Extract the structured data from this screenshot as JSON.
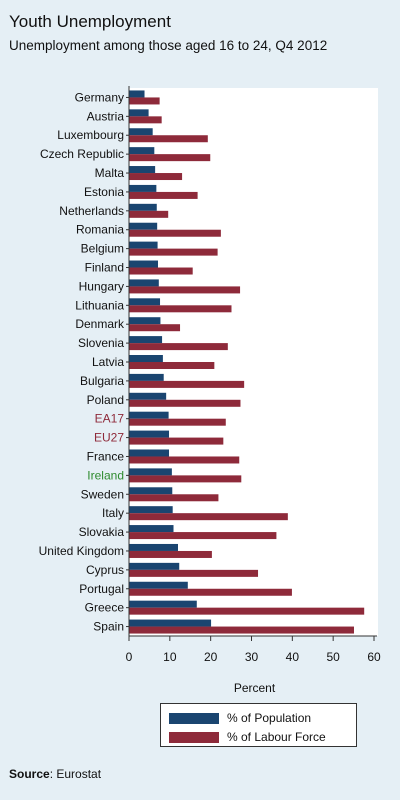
{
  "header": {
    "title": "Youth Unemployment",
    "subtitle": "Unemployment among those aged 16 to 24, Q4 2012"
  },
  "source": {
    "label": "Source",
    "text": ": Eurostat"
  },
  "colors": {
    "background": "#e5eff5",
    "population": "#1a4570",
    "labour_force": "#8e2a3a",
    "label_default": "#111111",
    "label_aggregate": "#8e2a3a",
    "label_highlight": "#2e8b2e"
  },
  "chart_data": {
    "type": "bar",
    "orientation": "horizontal",
    "xlabel": "Percent",
    "xlim": [
      0,
      60
    ],
    "xticks": [
      0,
      10,
      20,
      30,
      40,
      50,
      60
    ],
    "grid": false,
    "legend_position": "bottom",
    "categories": [
      "Germany",
      "Austria",
      "Luxembourg",
      "Czech Republic",
      "Malta",
      "Estonia",
      "Netherlands",
      "Romania",
      "Belgium",
      "Finland",
      "Hungary",
      "Lithuania",
      "Denmark",
      "Slovenia",
      "Latvia",
      "Bulgaria",
      "Poland",
      "EA17",
      "EU27",
      "France",
      "Ireland",
      "Sweden",
      "Italy",
      "Slovakia",
      "United Kingdom",
      "Cyprus",
      "Portugal",
      "Greece",
      "Spain"
    ],
    "label_style": {
      "EA17": "aggregate",
      "EU27": "aggregate",
      "Ireland": "highlight"
    },
    "series": [
      {
        "name": "% of Population",
        "values": [
          3.8,
          4.8,
          5.8,
          6.2,
          6.4,
          6.7,
          6.8,
          6.9,
          7.0,
          7.1,
          7.3,
          7.6,
          7.7,
          8.1,
          8.3,
          8.5,
          9.1,
          9.7,
          9.8,
          9.8,
          10.5,
          10.6,
          10.7,
          10.9,
          12.0,
          12.3,
          14.4,
          16.6,
          20.1
        ]
      },
      {
        "name": "% of Labour Force",
        "values": [
          7.5,
          8.0,
          19.3,
          19.9,
          13.0,
          16.8,
          9.6,
          22.5,
          21.7,
          15.6,
          27.2,
          25.1,
          12.5,
          24.2,
          20.9,
          28.2,
          27.3,
          23.7,
          23.1,
          27.0,
          27.5,
          21.9,
          38.9,
          36.1,
          20.3,
          31.6,
          39.9,
          57.6,
          55.1
        ]
      }
    ]
  }
}
